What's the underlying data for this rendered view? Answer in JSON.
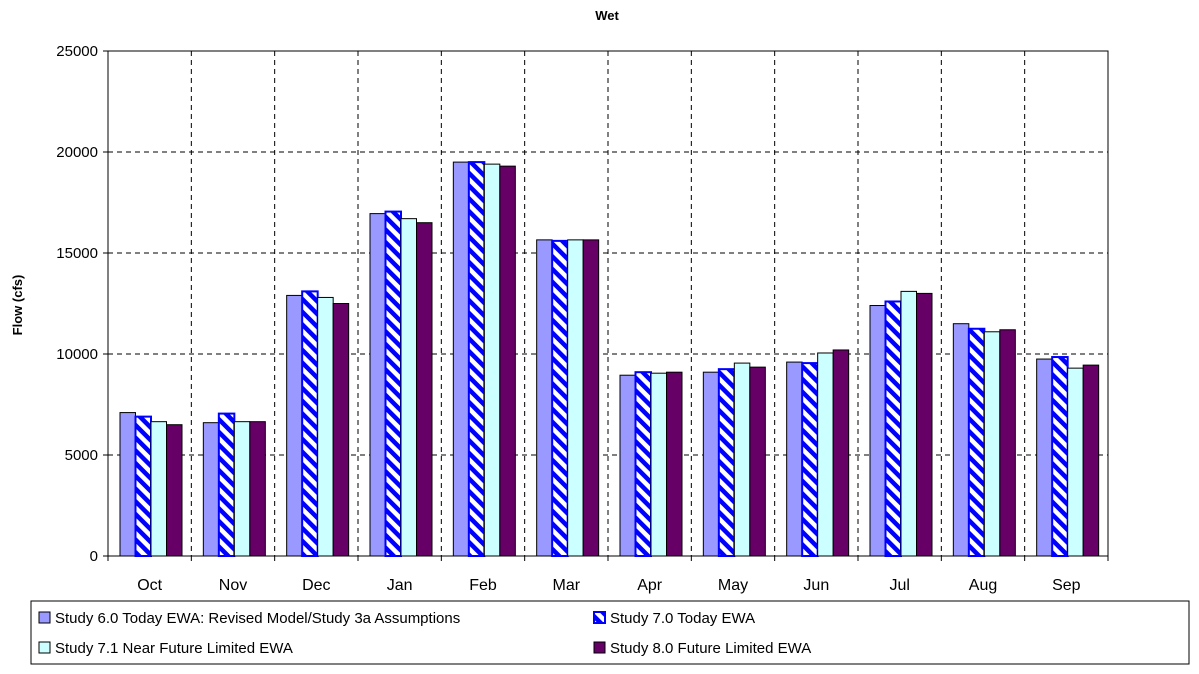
{
  "chart_data": {
    "type": "bar",
    "title": "Wet",
    "xlabel": "",
    "ylabel": "Flow (cfs)",
    "ylim": [
      0,
      25000
    ],
    "yticks": [
      0,
      5000,
      10000,
      15000,
      20000,
      25000
    ],
    "grid": true,
    "legend_position": "bottom",
    "categories": [
      "Oct",
      "Nov",
      "Dec",
      "Jan",
      "Feb",
      "Mar",
      "Apr",
      "May",
      "Jun",
      "Jul",
      "Aug",
      "Sep"
    ],
    "series": [
      {
        "name": "Study 6.0 Today EWA: Revised Model/Study 3a Assumptions",
        "color": "#9999ff",
        "pattern": "solid",
        "values": [
          7100,
          6600,
          12900,
          16950,
          19500,
          15650,
          8950,
          9100,
          9600,
          12400,
          11500,
          9750
        ]
      },
      {
        "name": "Study 7.0 Today EWA",
        "color": "#0000ff",
        "pattern": "diagonal-stripes",
        "values": [
          6900,
          7050,
          13100,
          17050,
          19500,
          15600,
          9100,
          9250,
          9550,
          12600,
          11250,
          9850
        ]
      },
      {
        "name": "Study 7.1 Near Future Limited EWA",
        "color": "#ccffff",
        "pattern": "solid",
        "values": [
          6650,
          6650,
          12800,
          16700,
          19400,
          15650,
          9050,
          9550,
          10050,
          13100,
          11100,
          9300
        ]
      },
      {
        "name": "Study 8.0 Future Limited EWA",
        "color": "#660066",
        "pattern": "solid",
        "values": [
          6500,
          6650,
          12500,
          16500,
          19300,
          15650,
          9100,
          9350,
          10200,
          13000,
          11200,
          9450
        ]
      }
    ]
  }
}
